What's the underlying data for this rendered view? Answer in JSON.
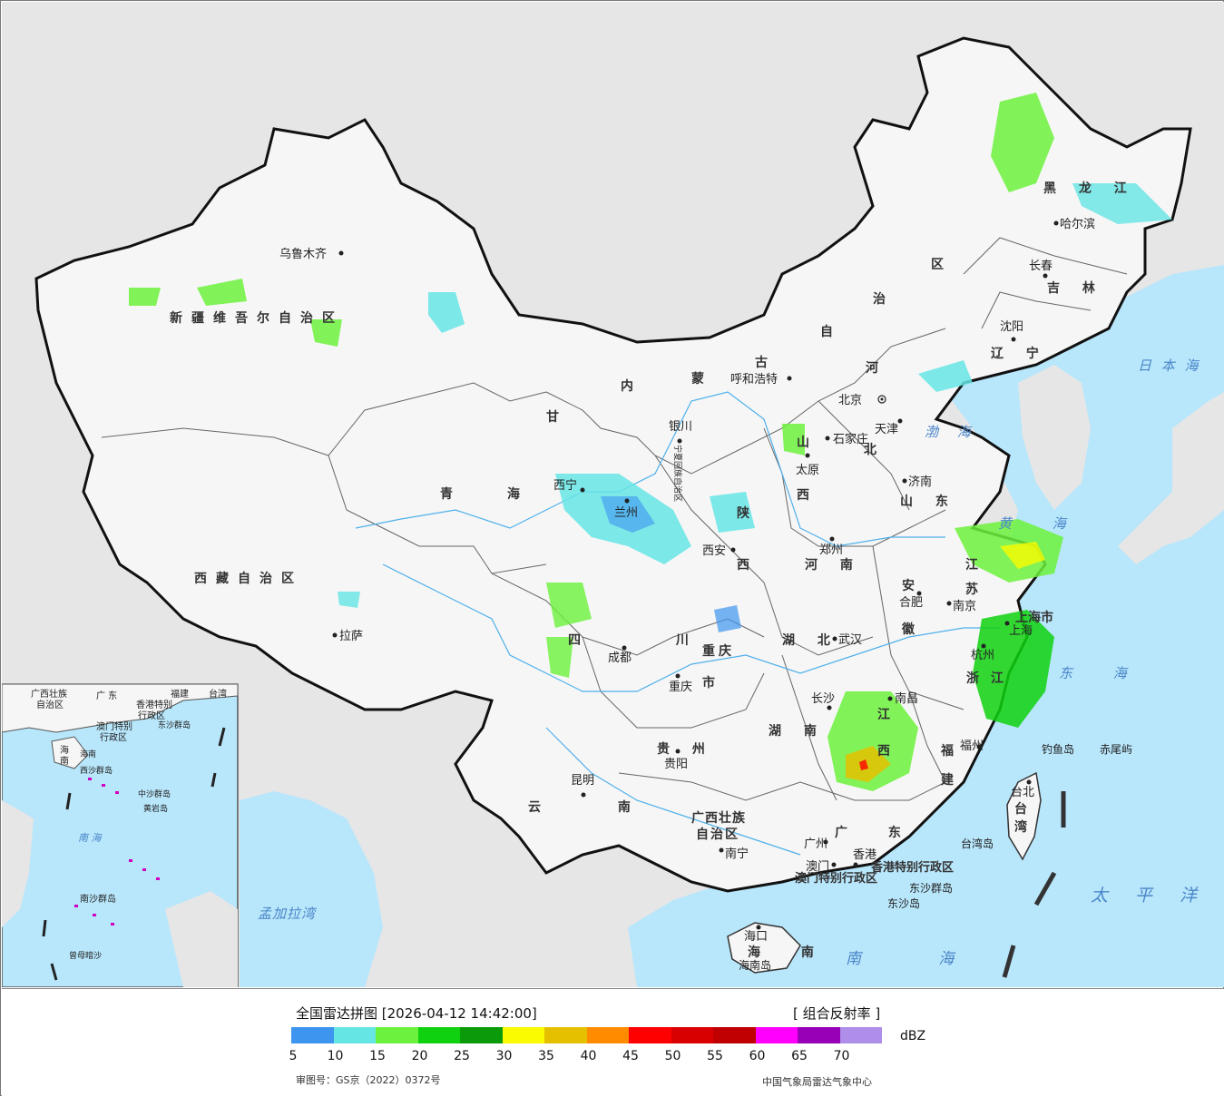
{
  "legend": {
    "title": "全国雷达拼图 [2026-04-12 14:42:00]",
    "product": "[ 组合反射率 ]",
    "unit": "dBZ",
    "ticks": [
      "5",
      "10",
      "15",
      "20",
      "25",
      "30",
      "35",
      "40",
      "45",
      "50",
      "55",
      "60",
      "65",
      "70"
    ],
    "colors": [
      "#3d95f0",
      "#66e5e5",
      "#6cf23c",
      "#0fd10f",
      "#0a9a0a",
      "#fafa00",
      "#e5c000",
      "#ff8c00",
      "#ff0000",
      "#d80000",
      "#c00000",
      "#ff00ff",
      "#9800b8",
      "#ae8ee8"
    ],
    "approval": "审图号：GS京（2022）0372号",
    "source": "中国气象局雷达气象中心"
  },
  "map": {
    "colors": {
      "sea": "#b8e6fb",
      "land_foreign": "#e6e6e6",
      "land_china": "#f8f8f8",
      "border": "#111111",
      "river": "#4fb0ea"
    },
    "provinces": [
      {
        "name": "新疆维吾尔自治区"
      },
      {
        "name": "西藏自治区"
      },
      {
        "name": "青海"
      },
      {
        "name": "甘"
      },
      {
        "name": "内"
      },
      {
        "name": "蒙"
      },
      {
        "name": "古"
      },
      {
        "name": "自"
      },
      {
        "name": "治"
      },
      {
        "name": "区"
      },
      {
        "name": "黑 龙 江"
      },
      {
        "name": "吉 林"
      },
      {
        "name": "辽 宁"
      },
      {
        "name": "河"
      },
      {
        "name": "北"
      },
      {
        "name": "山"
      },
      {
        "name": "西"
      },
      {
        "name": "陕"
      },
      {
        "name": "西"
      },
      {
        "name": "山 东"
      },
      {
        "name": "河 南"
      },
      {
        "name": "江"
      },
      {
        "name": "苏"
      },
      {
        "name": "安"
      },
      {
        "name": "徽"
      },
      {
        "name": "上海市"
      },
      {
        "name": "浙"
      },
      {
        "name": "江"
      },
      {
        "name": "湖 北"
      },
      {
        "name": "湖 南"
      },
      {
        "name": "江"
      },
      {
        "name": "西"
      },
      {
        "name": "福"
      },
      {
        "name": "建"
      },
      {
        "name": "四 川"
      },
      {
        "name": "重"
      },
      {
        "name": "庆"
      },
      {
        "name": "市"
      },
      {
        "name": "贵 州"
      },
      {
        "name": "云 南"
      },
      {
        "name": "广西壮族"
      },
      {
        "name": "自治区"
      },
      {
        "name": "广 东"
      },
      {
        "name": "海 南"
      },
      {
        "name": "台"
      },
      {
        "name": "湾"
      },
      {
        "name": "宁夏回族自治区"
      },
      {
        "name": "香港特别行政区"
      },
      {
        "name": "澳门特别行政区"
      }
    ],
    "cities": [
      {
        "name": "乌鲁木齐"
      },
      {
        "name": "拉萨"
      },
      {
        "name": "西宁"
      },
      {
        "name": "兰州"
      },
      {
        "name": "银川"
      },
      {
        "name": "呼和浩特"
      },
      {
        "name": "北京"
      },
      {
        "name": "天津"
      },
      {
        "name": "石家庄"
      },
      {
        "name": "太原"
      },
      {
        "name": "济南"
      },
      {
        "name": "郑州"
      },
      {
        "name": "西安"
      },
      {
        "name": "成都"
      },
      {
        "name": "重庆"
      },
      {
        "name": "武汉"
      },
      {
        "name": "合肥"
      },
      {
        "name": "南京"
      },
      {
        "name": "上海"
      },
      {
        "name": "杭州"
      },
      {
        "name": "南昌"
      },
      {
        "name": "长沙"
      },
      {
        "name": "贵阳"
      },
      {
        "name": "昆明"
      },
      {
        "name": "南宁"
      },
      {
        "name": "广州"
      },
      {
        "name": "福州"
      },
      {
        "name": "台北"
      },
      {
        "name": "海口"
      },
      {
        "name": "澳门"
      },
      {
        "name": "香港"
      },
      {
        "name": "沈阳"
      },
      {
        "name": "长春"
      },
      {
        "name": "哈尔滨"
      }
    ],
    "seas": [
      {
        "name": "日 本 海"
      },
      {
        "name": "渤 海"
      },
      {
        "name": "黄 海"
      },
      {
        "name": "东 海"
      },
      {
        "name": "太 平 洋"
      },
      {
        "name": "南 海"
      },
      {
        "name": "孟加拉湾"
      }
    ],
    "islands": [
      {
        "name": "钓鱼岛"
      },
      {
        "name": "赤尾屿"
      },
      {
        "name": "台湾岛"
      },
      {
        "name": "东沙群岛"
      },
      {
        "name": "东沙岛"
      },
      {
        "name": "海南岛"
      }
    ],
    "inset": {
      "labels": [
        "广西壮族",
        "自治区",
        "广 东",
        "福建",
        "台湾",
        "海",
        "南",
        "海南",
        "香港特别",
        "行政区",
        "澳门特别",
        "行政区",
        "东沙群岛",
        "西沙群岛",
        "中沙群岛",
        "黄岩岛",
        "南 海",
        "南沙群岛",
        "曾母暗沙"
      ]
    }
  }
}
